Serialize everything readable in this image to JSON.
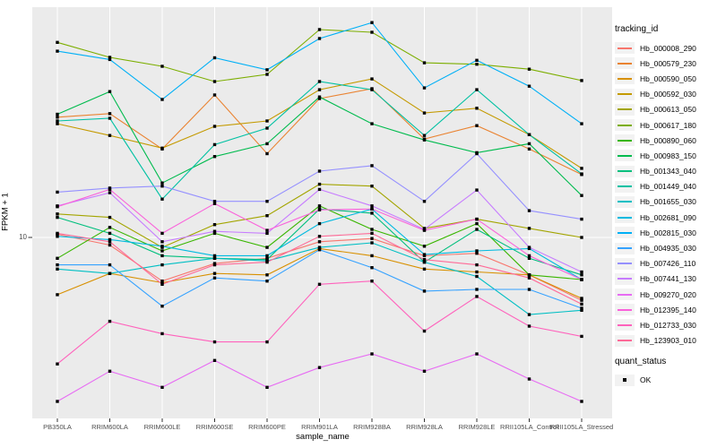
{
  "figure": {
    "y_axis_title": "FPKM + 1",
    "x_axis_title": "sample_name",
    "y_tick_label": "10",
    "legend_title": "tracking_id",
    "legend2_title": "quant_status",
    "legend2_item_label": "OK"
  },
  "colors": {
    "panel_bg": "#EBEBEB",
    "grid": "#FFFFFF",
    "tick": "#333333",
    "axis_text": "#4D4D4D",
    "point": "#000000",
    "legend_key_bg": "#F2F2F2"
  },
  "chart_data": {
    "type": "line",
    "title": "",
    "xlabel": "sample_name",
    "ylabel": "FPKM + 1",
    "y_scale": "log10",
    "y_ticks": [
      10
    ],
    "ylim": [
      1.9,
      95
    ],
    "grid": "major-only",
    "legend_position": "right",
    "marker": "black-square",
    "quant_status": "OK",
    "x_categories": [
      "PB350LA",
      "RRIM600LA",
      "RRIM600LE",
      "RRIM600SE",
      "RRIM600PE",
      "RRIM901LA",
      "RRIM928BA",
      "RRIM928LA",
      "RRIM928LE",
      "RRII105LA_Control",
      "RRII105LA_Stressed"
    ],
    "series": [
      {
        "name": "Hb_000008_290",
        "color": "#F8766D",
        "values": [
          10.3,
          9.3,
          6.6,
          7.8,
          8.2,
          9.6,
          9.9,
          8.4,
          8.6,
          7.0,
          5.5
        ]
      },
      {
        "name": "Hb_000579_230",
        "color": "#EA8331",
        "values": [
          31.4,
          32.5,
          23.2,
          38.8,
          22.2,
          37.5,
          41.2,
          25.5,
          29.0,
          23.2,
          18.2
        ]
      },
      {
        "name": "Hb_000590_050",
        "color": "#D89000",
        "values": [
          5.8,
          7.1,
          6.5,
          7.1,
          7.0,
          9.0,
          8.4,
          7.4,
          7.2,
          7.0,
          5.6
        ]
      },
      {
        "name": "Hb_000592_030",
        "color": "#C49A00",
        "values": [
          29.5,
          26.4,
          23.4,
          28.8,
          30.3,
          40.8,
          45.2,
          32.7,
          34.2,
          26.6,
          19.3
        ]
      },
      {
        "name": "Hb_000613_050",
        "color": "#A3A500",
        "values": [
          12.5,
          12.1,
          9.1,
          11.3,
          12.3,
          16.6,
          16.3,
          10.9,
          11.9,
          10.9,
          10.0
        ]
      },
      {
        "name": "Hb_000617_180",
        "color": "#7CAE00",
        "values": [
          64.0,
          55.5,
          51.0,
          44.1,
          47.2,
          72.3,
          70.5,
          52.7,
          52.0,
          49.6,
          44.5
        ]
      },
      {
        "name": "Hb_000890_060",
        "color": "#39B600",
        "values": [
          8.2,
          11.0,
          8.8,
          10.4,
          9.1,
          13.5,
          10.8,
          9.2,
          11.4,
          7.0,
          6.7
        ]
      },
      {
        "name": "Hb_000983_150",
        "color": "#00BB4E",
        "values": [
          32.3,
          40.1,
          16.8,
          21.6,
          24.4,
          38.1,
          29.5,
          25.3,
          22.4,
          24.4,
          14.9
        ]
      },
      {
        "name": "Hb_001343_040",
        "color": "#00BF7D",
        "values": [
          12.1,
          10.4,
          8.4,
          8.2,
          8.1,
          13.1,
          12.6,
          7.9,
          10.8,
          8.2,
          7.0
        ]
      },
      {
        "name": "Hb_001449_040",
        "color": "#00C1A3",
        "values": [
          30.3,
          31.1,
          14.4,
          24.2,
          28.3,
          44.1,
          40.8,
          26.4,
          40.8,
          26.6,
          18.3
        ]
      },
      {
        "name": "Hb_001655_030",
        "color": "#00BFC4",
        "values": [
          7.4,
          7.1,
          7.7,
          8.2,
          8.0,
          9.1,
          9.5,
          7.9,
          6.9,
          4.8,
          5.0
        ]
      },
      {
        "name": "Hb_002681_090",
        "color": "#00BAE0",
        "values": [
          10.1,
          9.8,
          9.2,
          8.4,
          8.4,
          11.4,
          13.1,
          8.5,
          8.8,
          9.0,
          6.7
        ]
      },
      {
        "name": "Hb_002815_030",
        "color": "#00B0F6",
        "values": [
          58.9,
          54.4,
          37.2,
          55.3,
          49.3,
          66.4,
          77.3,
          41.5,
          54.0,
          42.2,
          29.5
        ]
      },
      {
        "name": "Hb_004935_030",
        "color": "#35A2FF",
        "values": [
          7.7,
          7.7,
          5.2,
          6.8,
          6.6,
          8.9,
          7.5,
          6.0,
          6.1,
          6.1,
          5.1
        ]
      },
      {
        "name": "Hb_007426_110",
        "color": "#9590FF",
        "values": [
          15.4,
          16.0,
          16.3,
          14.1,
          14.1,
          18.8,
          19.8,
          14.1,
          22.2,
          12.9,
          11.9
        ]
      },
      {
        "name": "Hb_007441_130",
        "color": "#C77CFF",
        "values": [
          13.5,
          15.3,
          9.6,
          10.6,
          10.4,
          15.8,
          13.5,
          10.8,
          15.7,
          9.1,
          7.2
        ]
      },
      {
        "name": "Hb_009270_020",
        "color": "#E76BF3",
        "values": [
          2.1,
          2.8,
          2.4,
          3.1,
          2.4,
          2.9,
          3.3,
          2.8,
          3.3,
          2.6,
          2.1
        ]
      },
      {
        "name": "Hb_012395_140",
        "color": "#FA62DB",
        "values": [
          13.4,
          15.8,
          10.4,
          13.8,
          10.7,
          13.0,
          13.1,
          10.7,
          11.9,
          8.4,
          6.7
        ]
      },
      {
        "name": "Hb_012733_030",
        "color": "#FF62BC",
        "values": [
          3.0,
          4.5,
          4.0,
          3.7,
          3.7,
          6.4,
          6.6,
          4.1,
          5.7,
          4.3,
          3.9
        ]
      },
      {
        "name": "Hb_123903_010",
        "color": "#FF6A98",
        "values": [
          10.4,
          9.6,
          6.4,
          7.7,
          7.9,
          10.1,
          10.4,
          8.1,
          7.7,
          6.8,
          5.3
        ]
      }
    ]
  }
}
